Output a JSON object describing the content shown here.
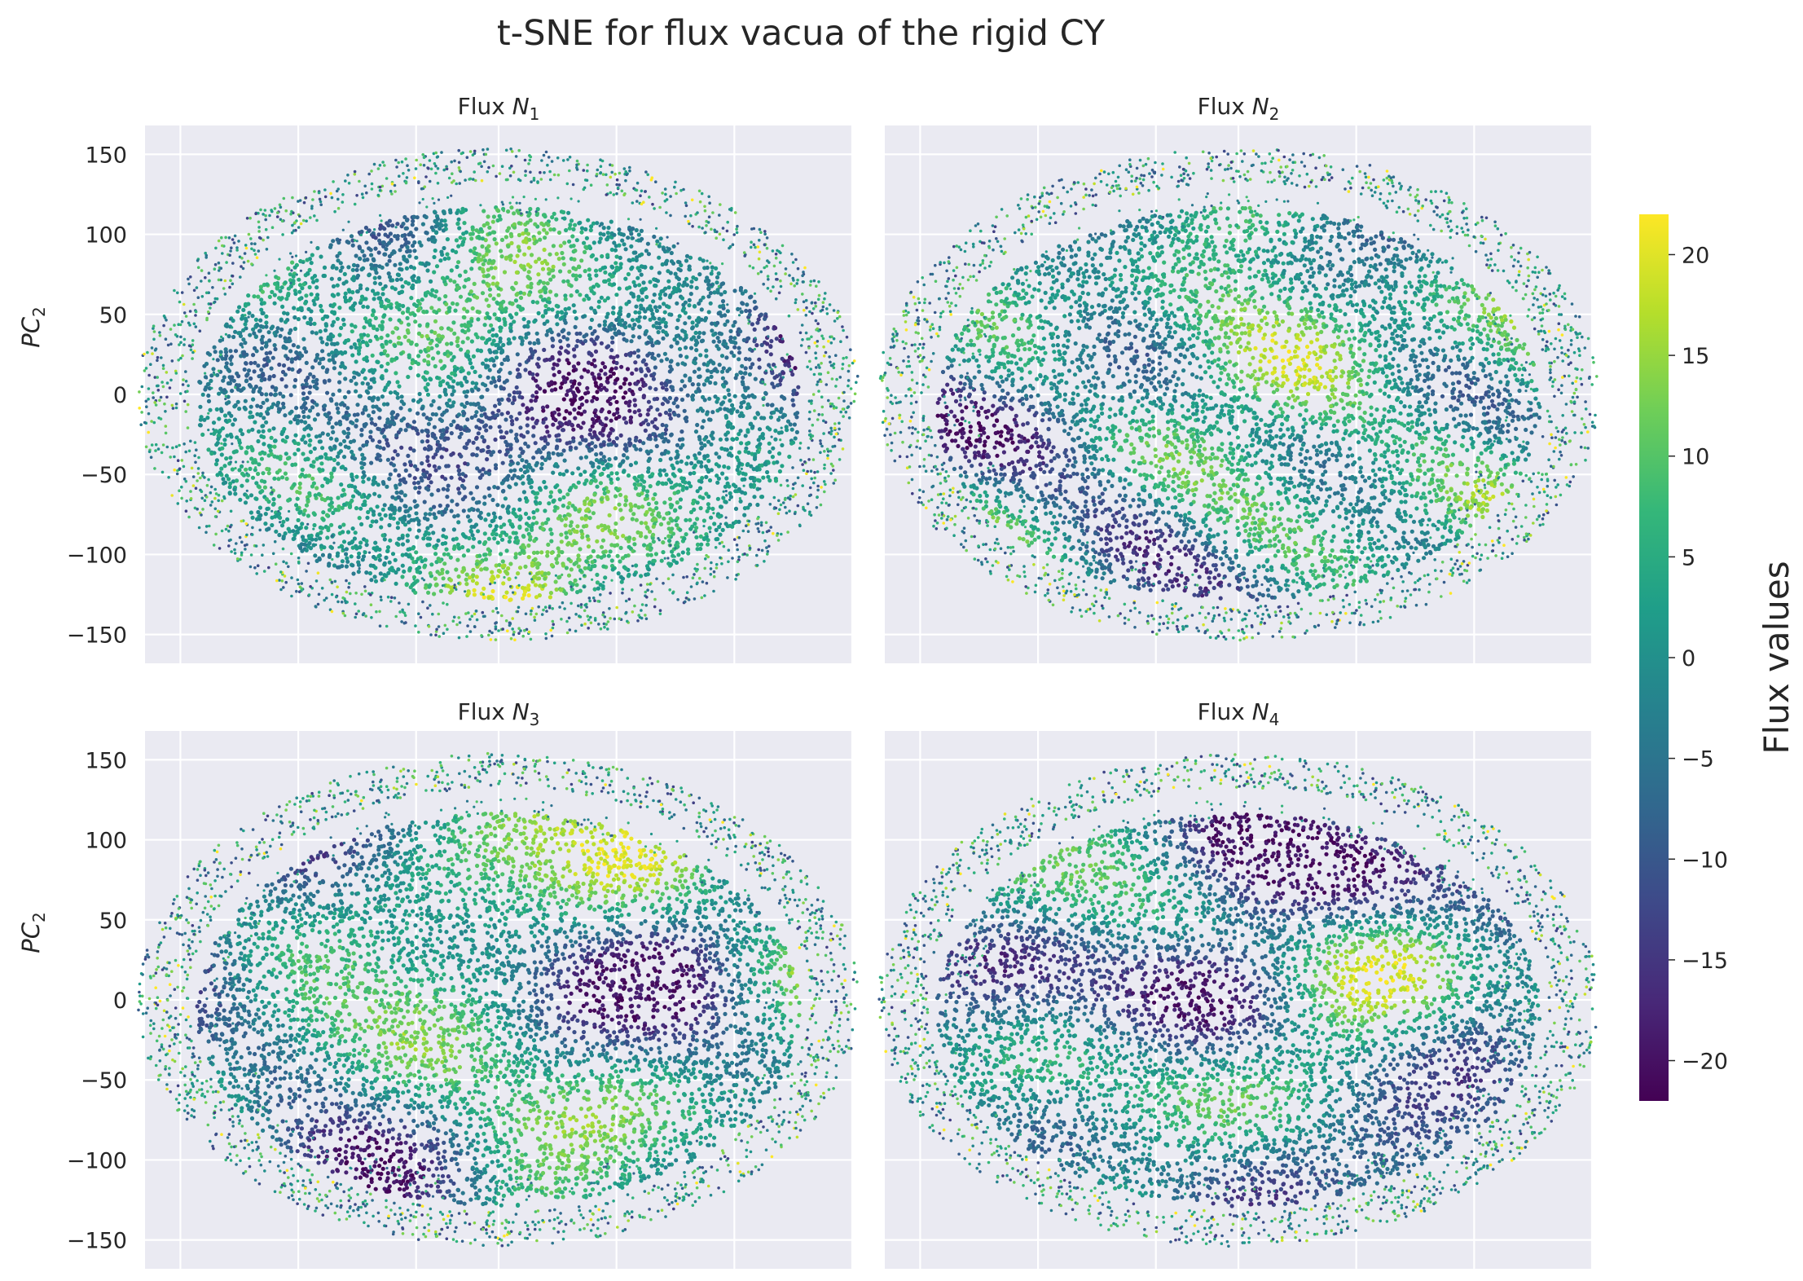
{
  "title": "t-SNE for flux vacua of the rigid CY",
  "chart_data": {
    "type": "scatter",
    "colormap": "viridis",
    "colorbar": {
      "label": "Flux values",
      "range": [
        -22,
        22
      ],
      "ticks": [
        -20,
        -15,
        -10,
        -5,
        0,
        5,
        10,
        15,
        20
      ],
      "tick_labels": [
        "−20",
        "−15",
        "−10",
        "−5",
        "0",
        "5",
        "10",
        "15",
        "20"
      ]
    },
    "ylabel": "PC",
    "ylabel_sub": "2",
    "yticks": [
      -150,
      -100,
      -50,
      0,
      50,
      100,
      150
    ],
    "ytick_labels": [
      "−150",
      "−100",
      "−50",
      "0",
      "50",
      "100",
      "150"
    ],
    "xlim": [
      -150,
      150
    ],
    "ylim": [
      -168,
      168
    ],
    "xgrid": [
      -135,
      -85,
      -35,
      0,
      50,
      100,
      150
    ],
    "grid": true,
    "layout": "2x2",
    "panels": [
      {
        "title": "Flux",
        "symbol": "N",
        "sub": "1"
      },
      {
        "title": "Flux",
        "symbol": "N",
        "sub": "2"
      },
      {
        "title": "Flux",
        "symbol": "N",
        "sub": "3"
      },
      {
        "title": "Flux",
        "symbol": "N",
        "sub": "4"
      }
    ],
    "shape": {
      "outer_rx": 153,
      "outer_ry": 154,
      "ring_inner": 0.86,
      "core_rx": 128,
      "core_ry": 128
    }
  },
  "colors": {
    "axes_bg": "#eaeaf2",
    "grid": "#ffffff",
    "text": "#262626",
    "viridis": [
      "#440154",
      "#482878",
      "#3e4989",
      "#31688e",
      "#26828e",
      "#1f9e89",
      "#35b779",
      "#6ece58",
      "#b5de2b",
      "#fde725"
    ]
  }
}
